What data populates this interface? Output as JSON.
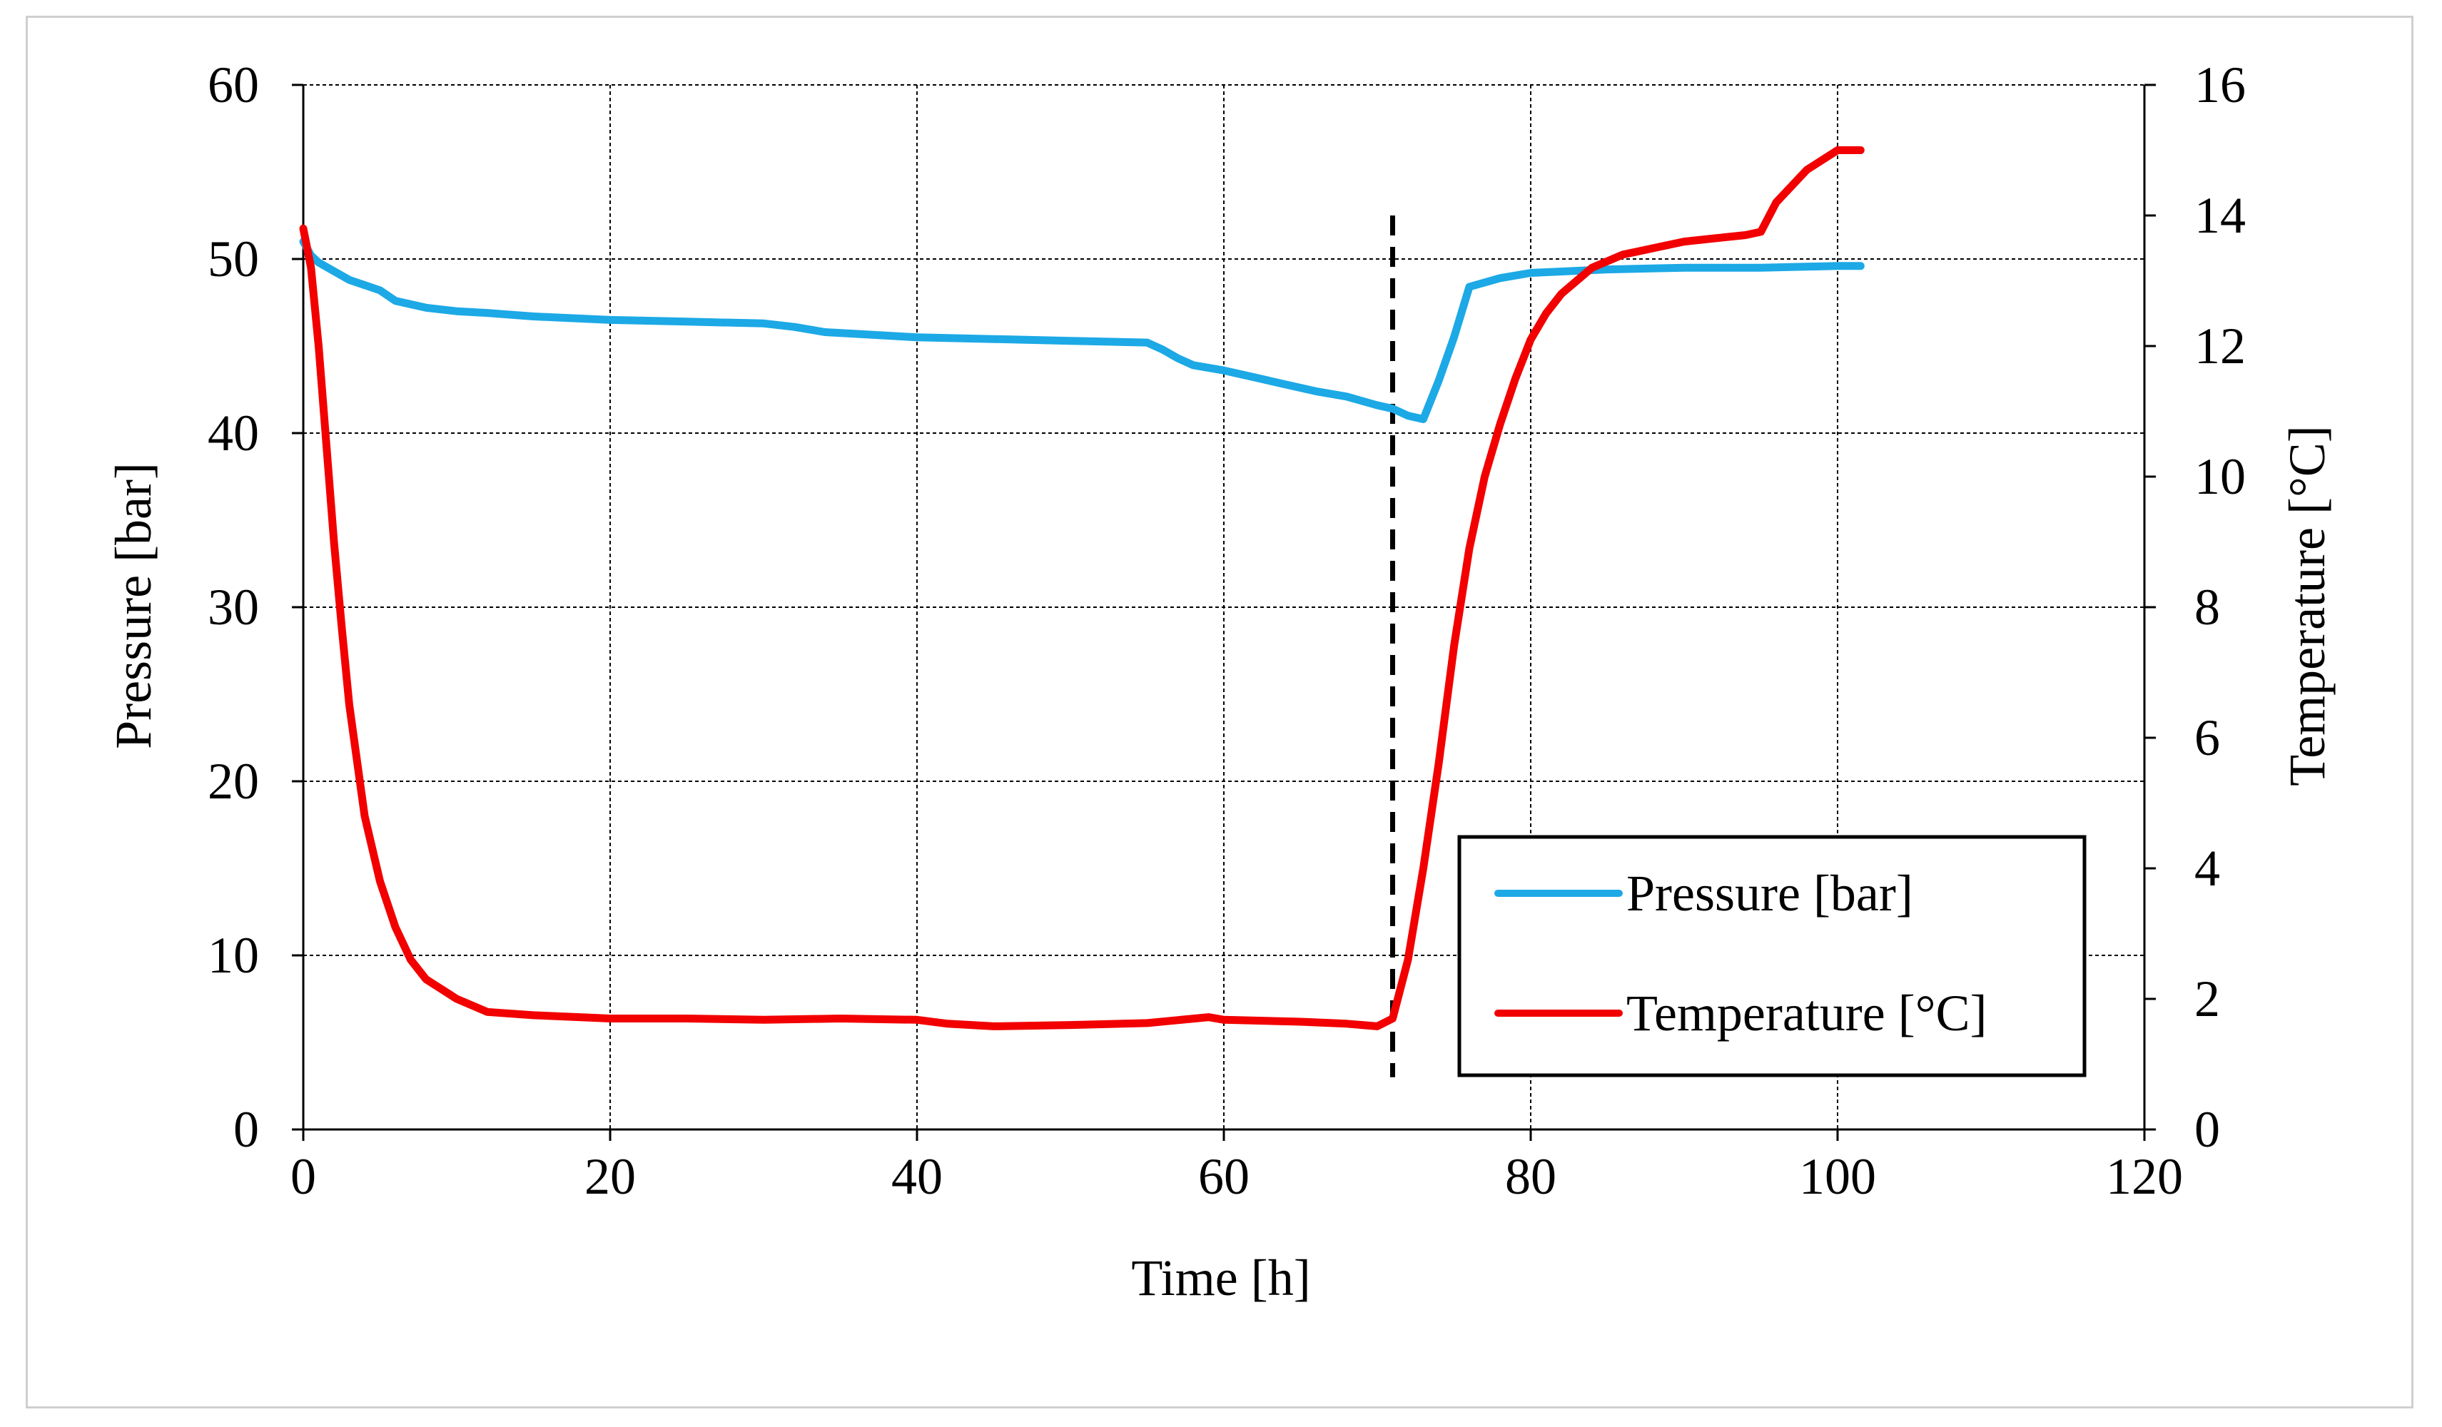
{
  "chart_data": {
    "type": "line",
    "title": "",
    "xlabel": "Time [h]",
    "ylabel": "Pressure [bar]",
    "y2label": "Temperature [°C]",
    "xlim": [
      0,
      120
    ],
    "ylim": [
      0,
      60
    ],
    "y2lim": [
      0,
      16
    ],
    "x_ticks": [
      0,
      20,
      40,
      60,
      80,
      100,
      120
    ],
    "y_ticks": [
      0,
      10,
      20,
      30,
      40,
      50,
      60
    ],
    "y2_ticks": [
      0,
      2,
      4,
      6,
      8,
      10,
      12,
      14,
      16
    ],
    "grid": true,
    "legend_position": "bottom-right",
    "vertical_marker": {
      "x": 71,
      "y_range": [
        3,
        52.5
      ],
      "style": "dashed",
      "color": "#000000"
    },
    "series": [
      {
        "name": "Pressure [bar]",
        "axis": "left",
        "color": "#1ca9e6",
        "x": [
          0,
          0.5,
          1,
          2,
          3,
          4,
          5,
          6,
          8,
          10,
          12,
          15,
          20,
          25,
          30,
          32,
          34,
          36,
          40,
          45,
          50,
          55,
          56,
          57,
          58,
          60,
          62,
          64,
          66,
          68,
          70,
          71,
          72,
          73,
          74,
          75,
          76,
          78,
          80,
          85,
          90,
          95,
          100,
          101.5
        ],
        "values": [
          51,
          50.2,
          49.8,
          49.3,
          48.8,
          48.5,
          48.2,
          47.6,
          47.2,
          47.0,
          46.9,
          46.7,
          46.5,
          46.4,
          46.3,
          46.1,
          45.8,
          45.7,
          45.5,
          45.4,
          45.3,
          45.2,
          44.8,
          44.3,
          43.9,
          43.6,
          43.2,
          42.8,
          42.4,
          42.1,
          41.6,
          41.4,
          41.0,
          40.8,
          43.0,
          45.5,
          48.4,
          48.9,
          49.2,
          49.4,
          49.5,
          49.5,
          49.6,
          49.6
        ]
      },
      {
        "name": "Temperature [°C]",
        "axis": "right",
        "color": "#f20000",
        "x": [
          0,
          0.5,
          1,
          1.5,
          2,
          2.5,
          3,
          4,
          5,
          6,
          7,
          8,
          10,
          12,
          15,
          18,
          20,
          25,
          30,
          35,
          40,
          42,
          45,
          50,
          55,
          59,
          60,
          65,
          68,
          70,
          71,
          72,
          73,
          74,
          75,
          76,
          77,
          78,
          79,
          80,
          81,
          82,
          83,
          84,
          86,
          88,
          90,
          92,
          94,
          95,
          96,
          98,
          100,
          101.5
        ],
        "values": [
          13.8,
          13.2,
          12.0,
          10.5,
          9.0,
          7.7,
          6.5,
          4.8,
          3.8,
          3.1,
          2.6,
          2.3,
          2.0,
          1.8,
          1.75,
          1.72,
          1.7,
          1.7,
          1.68,
          1.7,
          1.68,
          1.62,
          1.58,
          1.6,
          1.63,
          1.72,
          1.68,
          1.65,
          1.62,
          1.58,
          1.7,
          2.6,
          4.0,
          5.6,
          7.4,
          8.9,
          10.0,
          10.8,
          11.5,
          12.1,
          12.5,
          12.8,
          13.0,
          13.2,
          13.4,
          13.5,
          13.6,
          13.65,
          13.7,
          13.75,
          14.2,
          14.7,
          15.0,
          15.0
        ]
      }
    ]
  }
}
